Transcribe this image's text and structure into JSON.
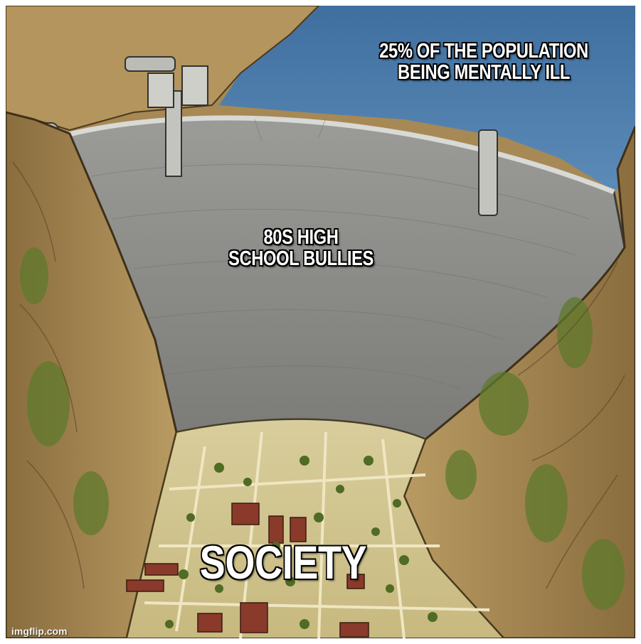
{
  "meme": {
    "template": "dam",
    "labels": {
      "water": "25% OF THE POPULATION\nBEING MENTALLY ILL",
      "dam": "80S HIGH\nSCHOOL BULLIES",
      "society": "SOCIETY"
    },
    "watermark": "imgflip.com"
  },
  "colors": {
    "water": "#4a78a8",
    "dam": "#8f8f8c",
    "cliff": "#a98a55",
    "moss": "#5f7a2c",
    "town": "#d6c995",
    "roof": "#8a3a2a"
  }
}
